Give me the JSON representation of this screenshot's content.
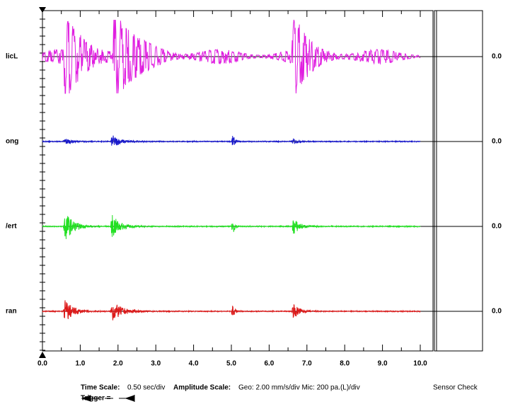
{
  "channels": [
    {
      "label": "licL",
      "value": "0.0"
    },
    {
      "label": "ong",
      "value": "0.0"
    },
    {
      "label": "/ert",
      "value": "0.0"
    },
    {
      "label": "ran",
      "value": "0.0"
    }
  ],
  "x_axis": {
    "labels": [
      "0.0",
      "1.0",
      "2.0",
      "3.0",
      "4.0",
      "5.0",
      "6.0",
      "7.0",
      "8.0",
      "9.0",
      "10.0"
    ]
  },
  "footer": {
    "time_scale_label": "Time Scale:",
    "time_scale_value": "0.50 sec/div",
    "amplitude_scale_label": "Amplitude Scale:",
    "amplitude_scale_value": "Geo: 2.00 mm/s/div Mic: 200 pa.(L)/div",
    "sensor_check": "Sensor Check",
    "trigger_label": "Trigger ="
  }
}
